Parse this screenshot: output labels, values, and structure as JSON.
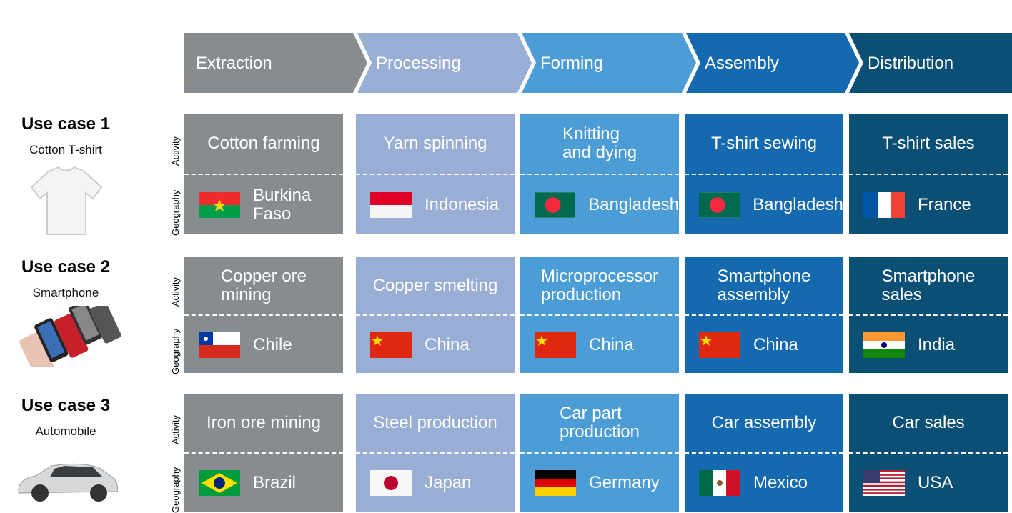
{
  "stages": [
    "Extraction",
    "Processing",
    "Forming",
    "Assembly",
    "Distribution"
  ],
  "row_labels": {
    "activity": "Activity",
    "geography": "Geography"
  },
  "use_cases": [
    {
      "title": "Use case 1",
      "subtitle": "Cotton T-shirt",
      "activities": [
        "Cotton farming",
        "Yarn spinning",
        "Knitting\nand dying",
        "T-shirt sewing",
        "T-shirt sales"
      ],
      "geographies": [
        "Burkina\nFaso",
        "Indonesia",
        "Bangladesh",
        "Bangladesh",
        "France"
      ]
    },
    {
      "title": "Use case 2",
      "subtitle": "Smartphone",
      "activities": [
        "Copper ore\nmining",
        "Copper smelting",
        "Microprocessor\nproduction",
        "Smartphone\nassembly",
        "Smartphone\nsales"
      ],
      "geographies": [
        "Chile",
        "China",
        "China",
        "China",
        "India"
      ]
    },
    {
      "title": "Use case 3",
      "subtitle": "Automobile",
      "activities": [
        "Iron ore mining",
        "Steel production",
        "Car part\nproduction",
        "Car assembly",
        "Car sales"
      ],
      "geographies": [
        "Brazil",
        "Japan",
        "Germany",
        "Mexico",
        "USA"
      ]
    }
  ]
}
